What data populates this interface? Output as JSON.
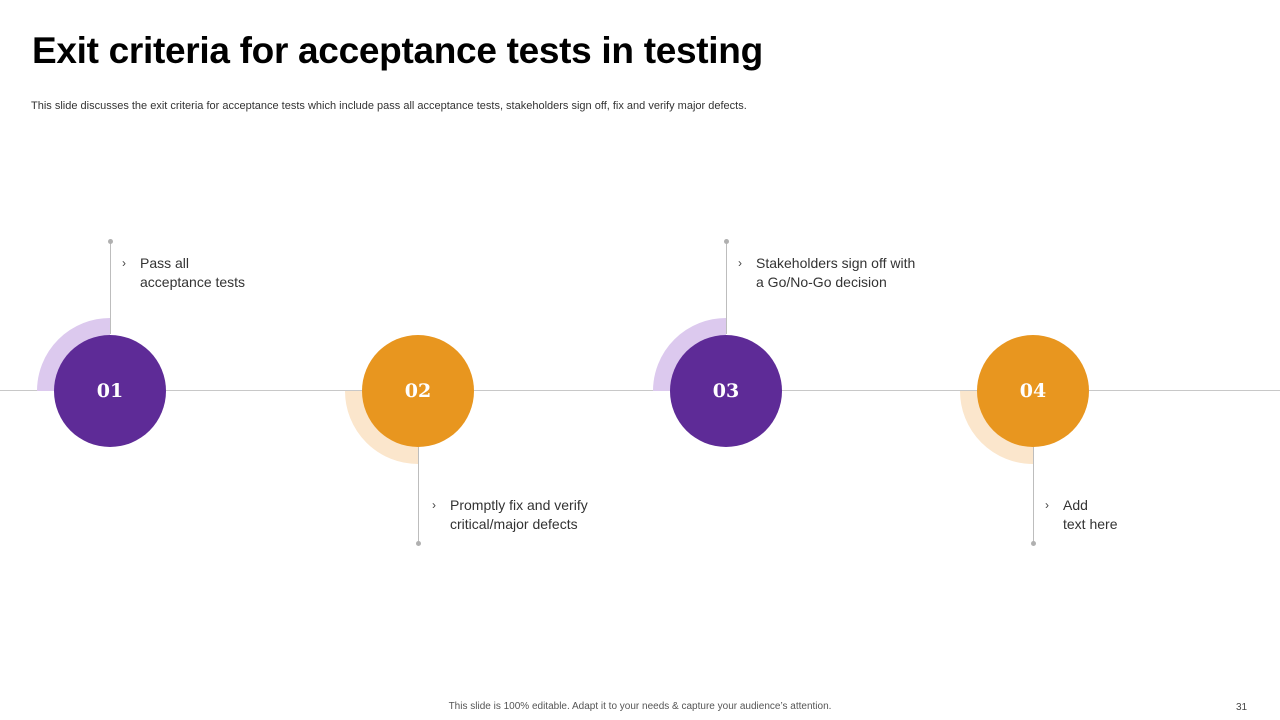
{
  "title": "Exit criteria for acceptance tests in testing",
  "subtitle": "This slide discusses the exit criteria for acceptance tests which include pass all acceptance tests, stakeholders sign off, fix and verify major defects.",
  "colors": {
    "purple": "#5e2b97",
    "purple_light": "#dcc9ee",
    "orange": "#e8961f",
    "orange_light": "#fbe6cc"
  },
  "steps": [
    {
      "number": "01",
      "lines": [
        "Pass all",
        "acceptance tests"
      ],
      "chevron": "›"
    },
    {
      "number": "02",
      "lines": [
        "Promptly fix and verify",
        "critical/major defects"
      ],
      "chevron": "›"
    },
    {
      "number": "03",
      "lines": [
        "Stakeholders sign off with",
        "a Go/No-Go decision"
      ],
      "chevron": "›"
    },
    {
      "number": "04",
      "lines": [
        "Add",
        "text here"
      ],
      "chevron": "›"
    }
  ],
  "footer": "This slide is 100% editable. Adapt it to your needs & capture your audience’s attention.",
  "page_number": "31"
}
